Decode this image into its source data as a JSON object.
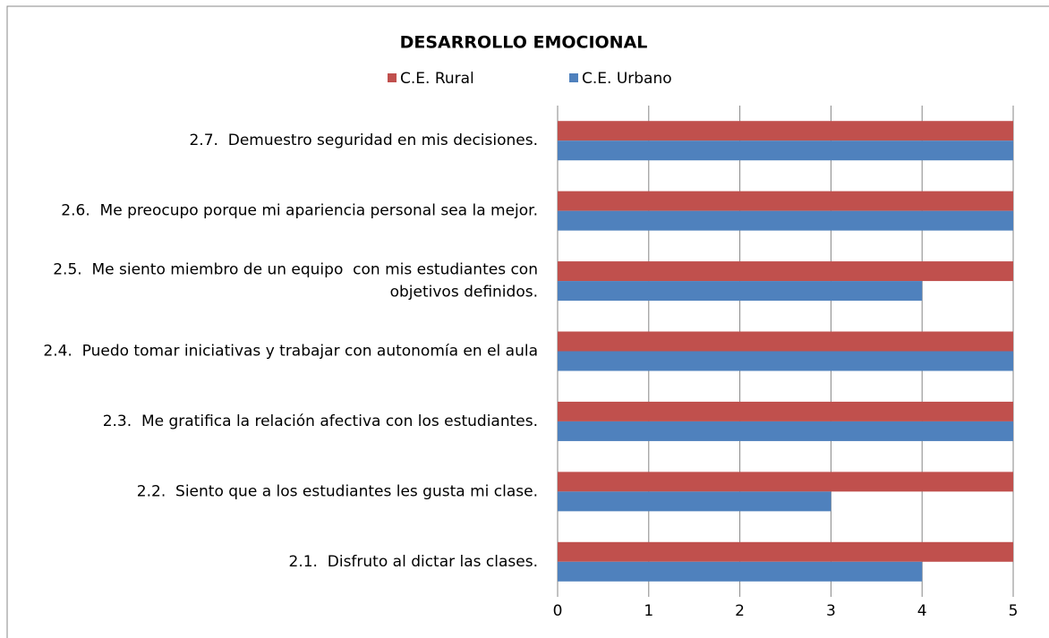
{
  "chart_data": {
    "type": "barh",
    "title": "DESARROLLO EMOCIONAL",
    "categories": [
      "2.1.  Disfruto al dictar las clases.",
      "2.2.  Siento que a los estudiantes les gusta mi clase.",
      "2.3.  Me gratifica la relación afectiva con los estudiantes.",
      "2.4.  Puedo tomar iniciativas y trabajar con autonomía en el aula",
      "2.5.  Me siento miembro de un equipo  con mis estudiantes con objetivos definidos.",
      "2.6.  Me preocupo porque mi apariencia personal sea la mejor.",
      "2.7.  Demuestro seguridad en mis decisiones."
    ],
    "series": [
      {
        "name": "C.E. Rural",
        "color": "#c0504d",
        "values": [
          5,
          5,
          5,
          5,
          5,
          5,
          5
        ]
      },
      {
        "name": "C.E. Urbano",
        "color": "#4f81bd",
        "values": [
          4,
          3,
          5,
          5,
          4,
          5,
          5
        ]
      }
    ],
    "xlim": [
      0,
      5
    ],
    "xticks": [
      0,
      1,
      2,
      3,
      4,
      5
    ],
    "grid": true,
    "legend": "top"
  }
}
